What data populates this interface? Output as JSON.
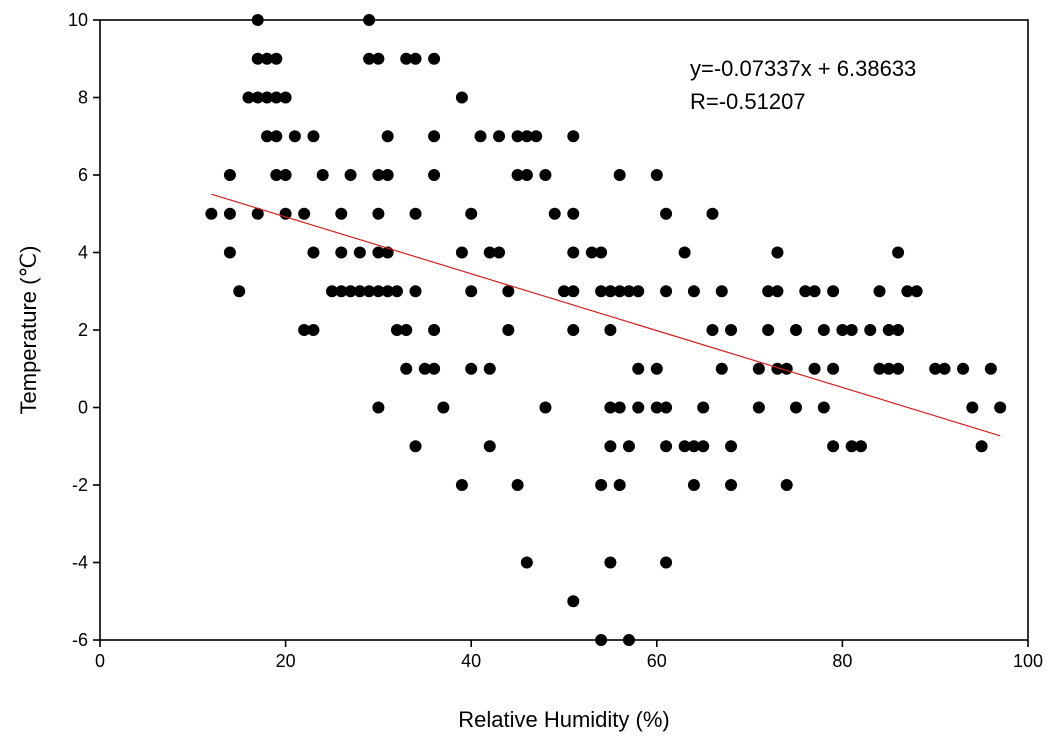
{
  "chart_data": {
    "type": "scatter",
    "title": "",
    "xlabel": "Relative Humidity (%)",
    "ylabel": "Temperature (℃)",
    "xlim": [
      0,
      100
    ],
    "ylim": [
      -6,
      10
    ],
    "xticks": [
      0,
      20,
      40,
      60,
      80,
      100
    ],
    "yticks": [
      -6,
      -4,
      -2,
      0,
      2,
      4,
      6,
      8,
      10
    ],
    "grid": false,
    "legend": "none",
    "marker_color": "#000000",
    "fit_line_color": "#cc2222",
    "annotations": [
      "y=-0.07337x + 6.38633",
      "R=-0.51207"
    ],
    "fit_line": {
      "slope": -0.07337,
      "intercept": 6.38633,
      "x_range": [
        12,
        97
      ]
    },
    "series": [
      {
        "points": [
          [
            12,
            5
          ],
          [
            14,
            5
          ],
          [
            14,
            6
          ],
          [
            14,
            4
          ],
          [
            15,
            3
          ],
          [
            16,
            8
          ],
          [
            17,
            10
          ],
          [
            17,
            9
          ],
          [
            17,
            8
          ],
          [
            17,
            5
          ],
          [
            18,
            9
          ],
          [
            18,
            8
          ],
          [
            18,
            7
          ],
          [
            19,
            9
          ],
          [
            19,
            8
          ],
          [
            19,
            7
          ],
          [
            19,
            6
          ],
          [
            20,
            8
          ],
          [
            20,
            6
          ],
          [
            20,
            5
          ],
          [
            21,
            7
          ],
          [
            22,
            5
          ],
          [
            22,
            2
          ],
          [
            23,
            7
          ],
          [
            23,
            4
          ],
          [
            23,
            2
          ],
          [
            24,
            6
          ],
          [
            25,
            3
          ],
          [
            26,
            5
          ],
          [
            26,
            4
          ],
          [
            26,
            3
          ],
          [
            27,
            6
          ],
          [
            27,
            3
          ],
          [
            28,
            4
          ],
          [
            28,
            3
          ],
          [
            29,
            10
          ],
          [
            29,
            9
          ],
          [
            29,
            3
          ],
          [
            30,
            9
          ],
          [
            30,
            6
          ],
          [
            30,
            5
          ],
          [
            30,
            4
          ],
          [
            30,
            3
          ],
          [
            30,
            0
          ],
          [
            31,
            7
          ],
          [
            31,
            6
          ],
          [
            31,
            4
          ],
          [
            31,
            3
          ],
          [
            32,
            3
          ],
          [
            32,
            2
          ],
          [
            33,
            9
          ],
          [
            33,
            2
          ],
          [
            33,
            1
          ],
          [
            34,
            9
          ],
          [
            34,
            5
          ],
          [
            34,
            3
          ],
          [
            34,
            -1
          ],
          [
            35,
            1
          ],
          [
            36,
            9
          ],
          [
            36,
            7
          ],
          [
            36,
            6
          ],
          [
            36,
            2
          ],
          [
            36,
            1
          ],
          [
            37,
            0
          ],
          [
            39,
            8
          ],
          [
            39,
            4
          ],
          [
            39,
            -2
          ],
          [
            40,
            5
          ],
          [
            40,
            3
          ],
          [
            40,
            1
          ],
          [
            41,
            7
          ],
          [
            42,
            4
          ],
          [
            42,
            1
          ],
          [
            42,
            -1
          ],
          [
            43,
            7
          ],
          [
            43,
            4
          ],
          [
            44,
            3
          ],
          [
            44,
            2
          ],
          [
            45,
            7
          ],
          [
            45,
            6
          ],
          [
            45,
            -2
          ],
          [
            46,
            7
          ],
          [
            46,
            6
          ],
          [
            46,
            -4
          ],
          [
            47,
            7
          ],
          [
            48,
            6
          ],
          [
            48,
            0
          ],
          [
            49,
            5
          ],
          [
            50,
            3
          ],
          [
            51,
            7
          ],
          [
            51,
            5
          ],
          [
            51,
            4
          ],
          [
            51,
            3
          ],
          [
            51,
            2
          ],
          [
            51,
            -5
          ],
          [
            53,
            4
          ],
          [
            54,
            4
          ],
          [
            54,
            3
          ],
          [
            54,
            -2
          ],
          [
            54,
            -6
          ],
          [
            55,
            3
          ],
          [
            55,
            2
          ],
          [
            55,
            0
          ],
          [
            55,
            -1
          ],
          [
            55,
            -4
          ],
          [
            56,
            6
          ],
          [
            56,
            3
          ],
          [
            56,
            0
          ],
          [
            56,
            -2
          ],
          [
            57,
            3
          ],
          [
            57,
            -1
          ],
          [
            57,
            -6
          ],
          [
            58,
            3
          ],
          [
            58,
            1
          ],
          [
            58,
            0
          ],
          [
            60,
            6
          ],
          [
            60,
            1
          ],
          [
            60,
            0
          ],
          [
            61,
            5
          ],
          [
            61,
            3
          ],
          [
            61,
            0
          ],
          [
            61,
            -1
          ],
          [
            61,
            -4
          ],
          [
            63,
            4
          ],
          [
            63,
            -1
          ],
          [
            64,
            3
          ],
          [
            64,
            -1
          ],
          [
            64,
            -2
          ],
          [
            65,
            0
          ],
          [
            65,
            -1
          ],
          [
            66,
            5
          ],
          [
            66,
            2
          ],
          [
            67,
            3
          ],
          [
            67,
            1
          ],
          [
            68,
            2
          ],
          [
            68,
            -1
          ],
          [
            68,
            -2
          ],
          [
            71,
            1
          ],
          [
            71,
            0
          ],
          [
            72,
            3
          ],
          [
            72,
            2
          ],
          [
            73,
            4
          ],
          [
            73,
            3
          ],
          [
            73,
            1
          ],
          [
            74,
            1
          ],
          [
            74,
            -2
          ],
          [
            75,
            2
          ],
          [
            75,
            0
          ],
          [
            76,
            3
          ],
          [
            77,
            3
          ],
          [
            77,
            1
          ],
          [
            78,
            2
          ],
          [
            78,
            0
          ],
          [
            79,
            3
          ],
          [
            79,
            1
          ],
          [
            79,
            -1
          ],
          [
            80,
            2
          ],
          [
            81,
            2
          ],
          [
            81,
            -1
          ],
          [
            82,
            -1
          ],
          [
            83,
            2
          ],
          [
            84,
            3
          ],
          [
            84,
            1
          ],
          [
            85,
            2
          ],
          [
            85,
            1
          ],
          [
            86,
            4
          ],
          [
            86,
            2
          ],
          [
            86,
            1
          ],
          [
            87,
            3
          ],
          [
            88,
            3
          ],
          [
            90,
            1
          ],
          [
            91,
            1
          ],
          [
            93,
            1
          ],
          [
            94,
            0
          ],
          [
            95,
            -1
          ],
          [
            96,
            1
          ],
          [
            97,
            0
          ]
        ]
      }
    ]
  }
}
